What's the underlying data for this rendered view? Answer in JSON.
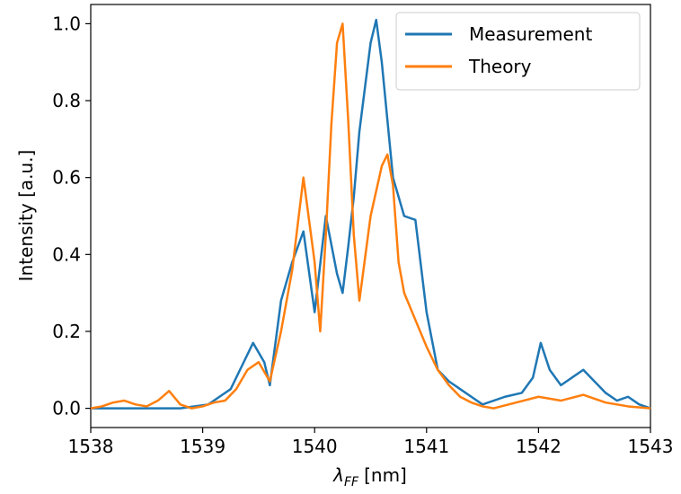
{
  "chart_data": {
    "type": "line",
    "xlabel": {
      "symbol": "λ",
      "subscript": "FF",
      "unit": "[nm]"
    },
    "ylabel": "Intensity [a.u.]",
    "xlim": [
      1538,
      1543
    ],
    "ylim": [
      -0.05,
      1.05
    ],
    "xticks": [
      "1538",
      "1539",
      "1540",
      "1541",
      "1542",
      "1543"
    ],
    "yticks": [
      "0.0",
      "0.2",
      "0.4",
      "0.6",
      "0.8",
      "1.0"
    ],
    "grid": false,
    "legend": "top-right",
    "colors": {
      "measurement": "#1f77b4",
      "theory": "#ff7f0e"
    },
    "series": [
      {
        "name": "Measurement",
        "color": "#1f77b4",
        "x": [
          1538.0,
          1538.8,
          1539.05,
          1539.15,
          1539.25,
          1539.35,
          1539.45,
          1539.55,
          1539.6,
          1539.7,
          1539.8,
          1539.9,
          1540.0,
          1540.1,
          1540.2,
          1540.25,
          1540.3,
          1540.35,
          1540.4,
          1540.5,
          1540.55,
          1540.6,
          1540.65,
          1540.7,
          1540.8,
          1540.9,
          1541.0,
          1541.1,
          1541.2,
          1541.3,
          1541.4,
          1541.5,
          1541.7,
          1541.85,
          1541.95,
          1542.02,
          1542.1,
          1542.2,
          1542.3,
          1542.4,
          1542.5,
          1542.6,
          1542.7,
          1542.8,
          1542.9,
          1543.0
        ],
        "y": [
          0.0,
          0.0,
          0.01,
          0.03,
          0.05,
          0.11,
          0.17,
          0.12,
          0.06,
          0.28,
          0.38,
          0.46,
          0.25,
          0.5,
          0.35,
          0.3,
          0.42,
          0.55,
          0.72,
          0.95,
          1.01,
          0.9,
          0.75,
          0.6,
          0.5,
          0.49,
          0.25,
          0.1,
          0.07,
          0.05,
          0.03,
          0.01,
          0.03,
          0.04,
          0.08,
          0.17,
          0.1,
          0.06,
          0.08,
          0.1,
          0.07,
          0.04,
          0.02,
          0.03,
          0.01,
          0.0
        ]
      },
      {
        "name": "Theory",
        "color": "#ff7f0e",
        "x": [
          1538.0,
          1538.1,
          1538.2,
          1538.3,
          1538.4,
          1538.5,
          1538.6,
          1538.7,
          1538.8,
          1538.9,
          1539.0,
          1539.1,
          1539.2,
          1539.3,
          1539.4,
          1539.5,
          1539.6,
          1539.7,
          1539.8,
          1539.9,
          1540.0,
          1540.05,
          1540.1,
          1540.15,
          1540.2,
          1540.25,
          1540.3,
          1540.35,
          1540.4,
          1540.5,
          1540.6,
          1540.65,
          1540.7,
          1540.75,
          1540.8,
          1540.9,
          1541.0,
          1541.1,
          1541.2,
          1541.3,
          1541.4,
          1541.5,
          1541.6,
          1541.8,
          1542.0,
          1542.2,
          1542.4,
          1542.6,
          1542.8,
          1543.0
        ],
        "y": [
          0.0,
          0.005,
          0.015,
          0.02,
          0.01,
          0.005,
          0.02,
          0.045,
          0.01,
          0.0,
          0.005,
          0.015,
          0.02,
          0.05,
          0.1,
          0.12,
          0.07,
          0.2,
          0.36,
          0.6,
          0.38,
          0.2,
          0.45,
          0.74,
          0.95,
          1.0,
          0.75,
          0.45,
          0.28,
          0.5,
          0.63,
          0.66,
          0.58,
          0.38,
          0.3,
          0.23,
          0.16,
          0.1,
          0.06,
          0.03,
          0.015,
          0.005,
          0.0,
          0.015,
          0.03,
          0.02,
          0.035,
          0.015,
          0.005,
          0.0
        ]
      }
    ]
  }
}
